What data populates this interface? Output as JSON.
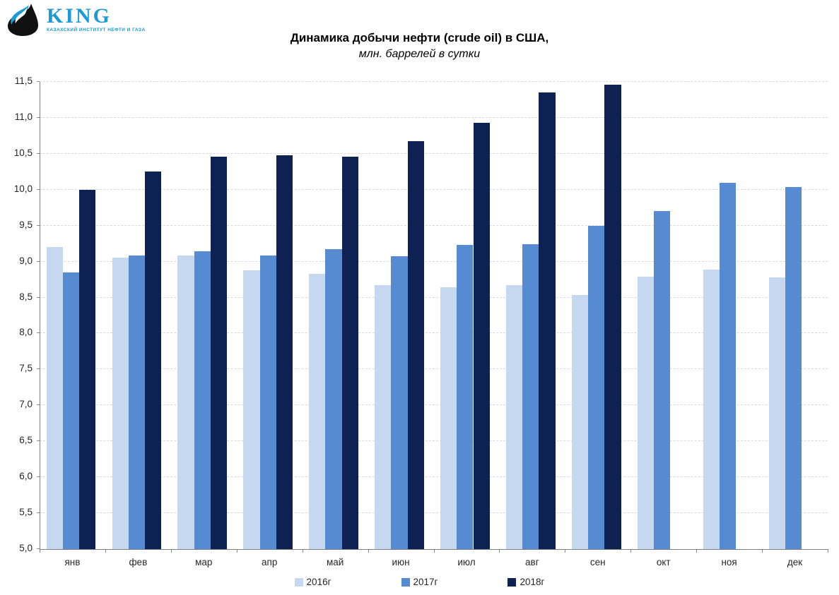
{
  "logo": {
    "name": "KING",
    "subtitle": "КАЗАХСКИЙ ИНСТИТУТ НЕФТИ И ГАЗА",
    "brand_color": "#1B9AD6",
    "drop_color": "#111111",
    "flame_color": "#1B9AD6"
  },
  "chart_data": {
    "type": "bar",
    "title": "Динамика добычи нефти (crude oil) в США,",
    "subtitle": "млн. баррелей в сутки",
    "categories": [
      "янв",
      "фев",
      "мар",
      "апр",
      "май",
      "июн",
      "июл",
      "авг",
      "сен",
      "окт",
      "ноя",
      "дек"
    ],
    "series": [
      {
        "name": "2016г",
        "color": "#C5D8F0",
        "values": [
          9.2,
          9.06,
          9.08,
          8.88,
          8.83,
          8.67,
          8.64,
          8.67,
          8.53,
          8.79,
          8.89,
          8.78
        ]
      },
      {
        "name": "2017г",
        "color": "#568BD2",
        "values": [
          8.85,
          9.08,
          9.14,
          9.08,
          9.17,
          9.07,
          9.23,
          9.24,
          9.5,
          9.7,
          10.1,
          10.04
        ]
      },
      {
        "name": "2018г",
        "color": "#0D2152",
        "values": [
          10.0,
          10.25,
          10.46,
          10.48,
          10.46,
          10.68,
          10.93,
          11.35,
          11.46,
          null,
          null,
          null
        ]
      }
    ],
    "ylim": [
      5.0,
      11.5
    ],
    "yticks": [
      {
        "value": 5.0,
        "label": "5,0"
      },
      {
        "value": 5.5,
        "label": "5,5"
      },
      {
        "value": 6.0,
        "label": "6,0"
      },
      {
        "value": 6.5,
        "label": "6,5"
      },
      {
        "value": 7.0,
        "label": "7,0"
      },
      {
        "value": 7.5,
        "label": "7,5"
      },
      {
        "value": 8.0,
        "label": "8,0"
      },
      {
        "value": 8.5,
        "label": "8,5"
      },
      {
        "value": 9.0,
        "label": "9,0"
      },
      {
        "value": 9.5,
        "label": "9,5"
      },
      {
        "value": 10.0,
        "label": "10,0"
      },
      {
        "value": 10.5,
        "label": "10,5"
      },
      {
        "value": 11.0,
        "label": "11,0"
      },
      {
        "value": 11.5,
        "label": "11,5"
      }
    ],
    "grid": true,
    "legend_position": "bottom",
    "gridline_color": "#D9D9D9",
    "axis_color": "#7F7F7F"
  }
}
